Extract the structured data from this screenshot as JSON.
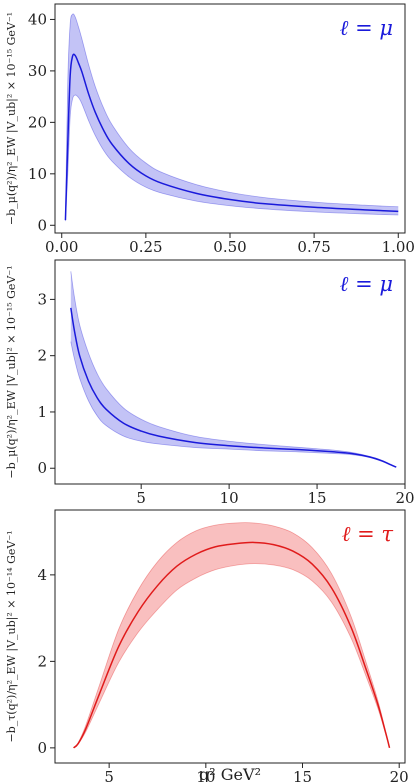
{
  "chart_data": [
    {
      "type": "line",
      "legend": "ℓ = μ",
      "legend_placement": "top-right",
      "ylabel": "−b_μ(q²)/η²_EW |V_ub|² × 10⁻¹⁵ GeV⁻¹",
      "xlabel": "",
      "xlim": [
        -0.02,
        1.02
      ],
      "ylim": [
        -1.5,
        43
      ],
      "xticks": [
        0.0,
        0.25,
        0.5,
        0.75,
        1.0
      ],
      "xtick_labels": [
        "0.00",
        "0.25",
        "0.50",
        "0.75",
        "1.00"
      ],
      "yticks": [
        0,
        10,
        20,
        30,
        40
      ],
      "ytick_labels": [
        "0",
        "10",
        "20",
        "30",
        "40"
      ],
      "color": "#1a1adb",
      "band_color": "#b8b8f5",
      "series": [
        {
          "x": [
            0.011,
            0.018,
            0.025,
            0.032,
            0.04,
            0.05,
            0.06,
            0.08,
            0.1,
            0.125,
            0.15,
            0.2,
            0.25,
            0.3,
            0.4,
            0.5,
            0.6,
            0.75,
            0.9,
            1.0
          ],
          "y": [
            1.0,
            16,
            29,
            32.8,
            33.0,
            31.5,
            29.8,
            25.5,
            21.9,
            18.4,
            15.7,
            12.0,
            9.6,
            8.1,
            6.2,
            5.0,
            4.2,
            3.5,
            3.0,
            2.7
          ],
          "y_upper": [
            1.2,
            28,
            39,
            41.0,
            40.5,
            38.5,
            36.2,
            31.2,
            26.9,
            22.7,
            19.5,
            15.0,
            12.1,
            10.2,
            7.9,
            6.4,
            5.4,
            4.5,
            3.9,
            3.6
          ],
          "y_lower": [
            0.8,
            10,
            21,
            24.5,
            25.3,
            24.8,
            23.6,
            20.3,
            17.4,
            14.5,
            12.4,
            9.4,
            7.4,
            6.2,
            4.7,
            3.8,
            3.2,
            2.6,
            2.2,
            2.0
          ]
        }
      ]
    },
    {
      "type": "line",
      "legend": "ℓ = μ",
      "legend_placement": "top-right",
      "ylabel": "−b_μ(q²)/η²_EW |V_ub|² × 10⁻¹⁵ GeV⁻¹",
      "xlabel": "",
      "xlim": [
        0.1,
        20.0
      ],
      "ylim": [
        -0.28,
        3.7
      ],
      "xticks": [
        5,
        10,
        15,
        20
      ],
      "xtick_labels": [
        "5",
        "10",
        "15",
        "20"
      ],
      "yticks": [
        0,
        1,
        2,
        3
      ],
      "ytick_labels": [
        "0",
        "1",
        "2",
        "3"
      ],
      "color": "#1a1adb",
      "band_color": "#b8b8f5",
      "series": [
        {
          "x": [
            1.0,
            1.2,
            1.5,
            2.0,
            2.5,
            3.0,
            4.0,
            5.0,
            6.0,
            8.0,
            10.0,
            12.0,
            14.0,
            16.0,
            17.0,
            18.0,
            18.7,
            19.2,
            19.5
          ],
          "y": [
            2.85,
            2.45,
            2.0,
            1.55,
            1.25,
            1.05,
            0.8,
            0.66,
            0.57,
            0.46,
            0.4,
            0.36,
            0.33,
            0.29,
            0.26,
            0.2,
            0.13,
            0.06,
            0.02
          ],
          "y_upper": [
            3.5,
            3.05,
            2.55,
            2.05,
            1.68,
            1.42,
            1.07,
            0.87,
            0.74,
            0.57,
            0.48,
            0.42,
            0.37,
            0.32,
            0.28,
            0.21,
            0.14,
            0.065,
            0.022
          ],
          "y_lower": [
            2.25,
            1.95,
            1.6,
            1.2,
            0.93,
            0.76,
            0.57,
            0.48,
            0.43,
            0.37,
            0.34,
            0.31,
            0.29,
            0.26,
            0.24,
            0.19,
            0.12,
            0.055,
            0.018
          ]
        }
      ]
    },
    {
      "type": "line",
      "legend": "ℓ = τ",
      "legend_placement": "top-right",
      "ylabel": "−b_τ(q²)/η²_EW |V_ub|² × 10⁻¹⁴ GeV⁻¹",
      "xlabel": "q² GeV²",
      "xlim": [
        2.2,
        20.3
      ],
      "ylim": [
        -0.35,
        5.5
      ],
      "xticks": [
        5,
        10,
        15,
        20
      ],
      "xtick_labels": [
        "5",
        "10",
        "15",
        "20"
      ],
      "yticks": [
        0,
        2,
        4
      ],
      "ytick_labels": [
        "0",
        "2",
        "4"
      ],
      "color": "#e01b1b",
      "band_color": "#f8b4b4",
      "series": [
        {
          "x": [
            3.16,
            3.4,
            3.8,
            4.5,
            5.5,
            6.5,
            7.5,
            8.5,
            9.5,
            10.5,
            11.5,
            12.5,
            13.5,
            14.5,
            15.5,
            16.5,
            17.5,
            18.3,
            18.9,
            19.3,
            19.5
          ],
          "y": [
            0.0,
            0.1,
            0.45,
            1.25,
            2.35,
            3.15,
            3.75,
            4.2,
            4.48,
            4.65,
            4.72,
            4.75,
            4.7,
            4.55,
            4.25,
            3.7,
            2.8,
            1.8,
            1.0,
            0.35,
            0.0
          ],
          "y_upper": [
            0.0,
            0.12,
            0.53,
            1.45,
            2.75,
            3.65,
            4.3,
            4.75,
            5.02,
            5.15,
            5.2,
            5.2,
            5.13,
            4.97,
            4.63,
            4.03,
            3.05,
            1.96,
            1.09,
            0.38,
            0.0
          ],
          "y_lower": [
            0.0,
            0.09,
            0.38,
            1.05,
            1.98,
            2.67,
            3.2,
            3.65,
            3.93,
            4.12,
            4.22,
            4.26,
            4.23,
            4.12,
            3.86,
            3.37,
            2.55,
            1.64,
            0.91,
            0.32,
            0.0
          ]
        }
      ]
    }
  ]
}
